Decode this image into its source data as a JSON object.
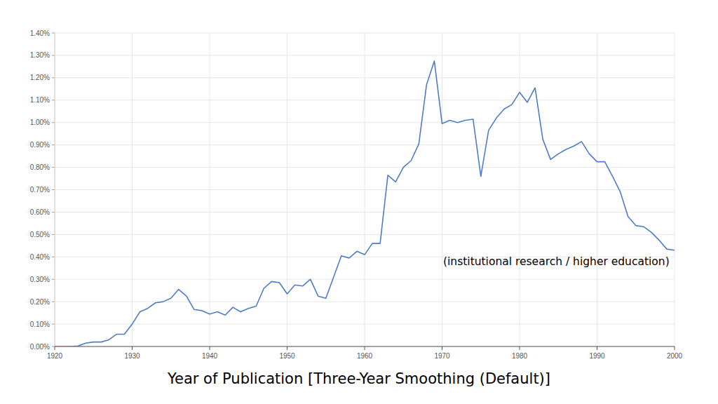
{
  "chart_data": {
    "type": "line",
    "xlabel": "Year of Publication [Three-Year Smoothing (Default)]",
    "annotation": "(institutional research / higher education)",
    "color": "#4f7cc6",
    "grid": true,
    "xlim": [
      1920,
      2000
    ],
    "xticks": [
      1920,
      1930,
      1940,
      1950,
      1960,
      1970,
      1980,
      1990,
      2000
    ],
    "ylim": [
      0,
      1.4
    ],
    "yticks": [
      {
        "value": 0,
        "label": "0.00%"
      },
      {
        "value": 0.1,
        "label": "0.10%"
      },
      {
        "value": 0.2,
        "label": "0.20%"
      },
      {
        "value": 0.3,
        "label": "0.30%"
      },
      {
        "value": 0.4,
        "label": "0.40%"
      },
      {
        "value": 0.5,
        "label": "0.50%"
      },
      {
        "value": 0.6,
        "label": "0.60%"
      },
      {
        "value": 0.7,
        "label": "0.70%"
      },
      {
        "value": 0.8,
        "label": "0.80%"
      },
      {
        "value": 0.9,
        "label": "0.90%"
      },
      {
        "value": 1.0,
        "label": "1.00%"
      },
      {
        "value": 1.1,
        "label": "1.10%"
      },
      {
        "value": 1.2,
        "label": "1.20%"
      },
      {
        "value": 1.3,
        "label": "1.30%"
      },
      {
        "value": 1.4,
        "label": "1.40%"
      }
    ],
    "x": [
      1920,
      1921,
      1922,
      1923,
      1924,
      1925,
      1926,
      1927,
      1928,
      1929,
      1930,
      1931,
      1932,
      1933,
      1934,
      1935,
      1936,
      1937,
      1938,
      1939,
      1940,
      1941,
      1942,
      1943,
      1944,
      1945,
      1946,
      1947,
      1948,
      1949,
      1950,
      1951,
      1952,
      1953,
      1954,
      1955,
      1956,
      1957,
      1958,
      1959,
      1960,
      1961,
      1962,
      1963,
      1964,
      1965,
      1966,
      1967,
      1968,
      1969,
      1970,
      1971,
      1972,
      1973,
      1974,
      1975,
      1976,
      1977,
      1978,
      1979,
      1980,
      1981,
      1982,
      1983,
      1984,
      1985,
      1986,
      1987,
      1988,
      1989,
      1990,
      1991,
      1992,
      1993,
      1994,
      1995,
      1996,
      1997,
      1998,
      1999,
      2000
    ],
    "values": [
      0,
      0,
      0,
      0.002,
      0.015,
      0.02,
      0.02,
      0.03,
      0.055,
      0.055,
      0.1,
      0.155,
      0.17,
      0.195,
      0.2,
      0.215,
      0.255,
      0.225,
      0.165,
      0.16,
      0.145,
      0.155,
      0.14,
      0.175,
      0.155,
      0.17,
      0.18,
      0.26,
      0.29,
      0.285,
      0.235,
      0.275,
      0.27,
      0.3,
      0.225,
      0.215,
      0.31,
      0.405,
      0.395,
      0.425,
      0.41,
      0.46,
      0.46,
      0.765,
      0.735,
      0.8,
      0.83,
      0.905,
      1.17,
      1.275,
      0.995,
      1.01,
      1.0,
      1.01,
      1.015,
      0.76,
      0.965,
      1.02,
      1.06,
      1.08,
      1.135,
      1.09,
      1.155,
      0.925,
      0.835,
      0.86,
      0.88,
      0.895,
      0.915,
      0.86,
      0.825,
      0.825,
      0.76,
      0.69,
      0.58,
      0.54,
      0.535,
      0.51,
      0.475,
      0.435,
      0.43
    ]
  }
}
